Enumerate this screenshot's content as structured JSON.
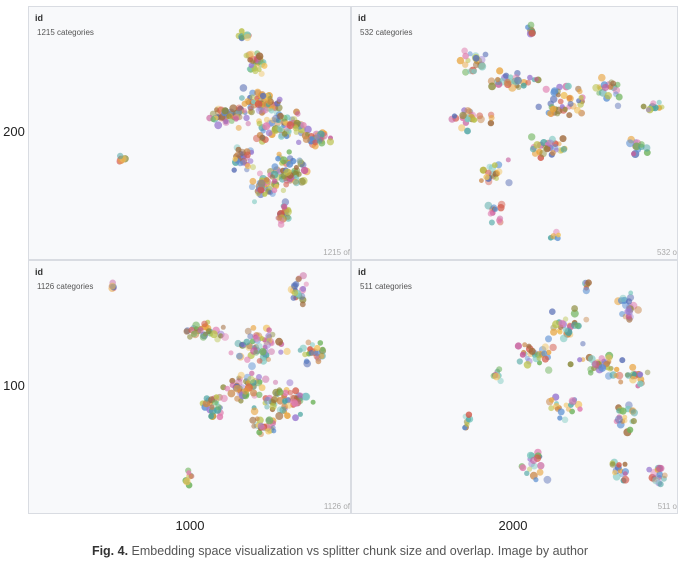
{
  "rows": [
    "200",
    "100"
  ],
  "cols": [
    "1000",
    "2000"
  ],
  "panels": [
    {
      "title": "id",
      "categories": "1215 categories",
      "footer": "1215 of"
    },
    {
      "title": "id",
      "categories": "532 categories",
      "footer": "532 o"
    },
    {
      "title": "id",
      "categories": "1126 categories",
      "footer": "1126 of"
    },
    {
      "title": "id",
      "categories": "511 categories",
      "footer": "511 o"
    }
  ],
  "caption": {
    "label": "Fig. 4.",
    "text": "Embedding space visualization vs splitter chunk size and overlap. Image by author"
  },
  "palette": [
    "#e8a33d",
    "#6fb35c",
    "#c65c9a",
    "#5b8fd1",
    "#a06b3c",
    "#7fc9c0",
    "#d35a4a",
    "#9b7bd0",
    "#b9c14a",
    "#4aa3a0",
    "#e07fb0",
    "#8a8a3a",
    "#f0c05a",
    "#5a6fb5",
    "#c9874a"
  ]
}
